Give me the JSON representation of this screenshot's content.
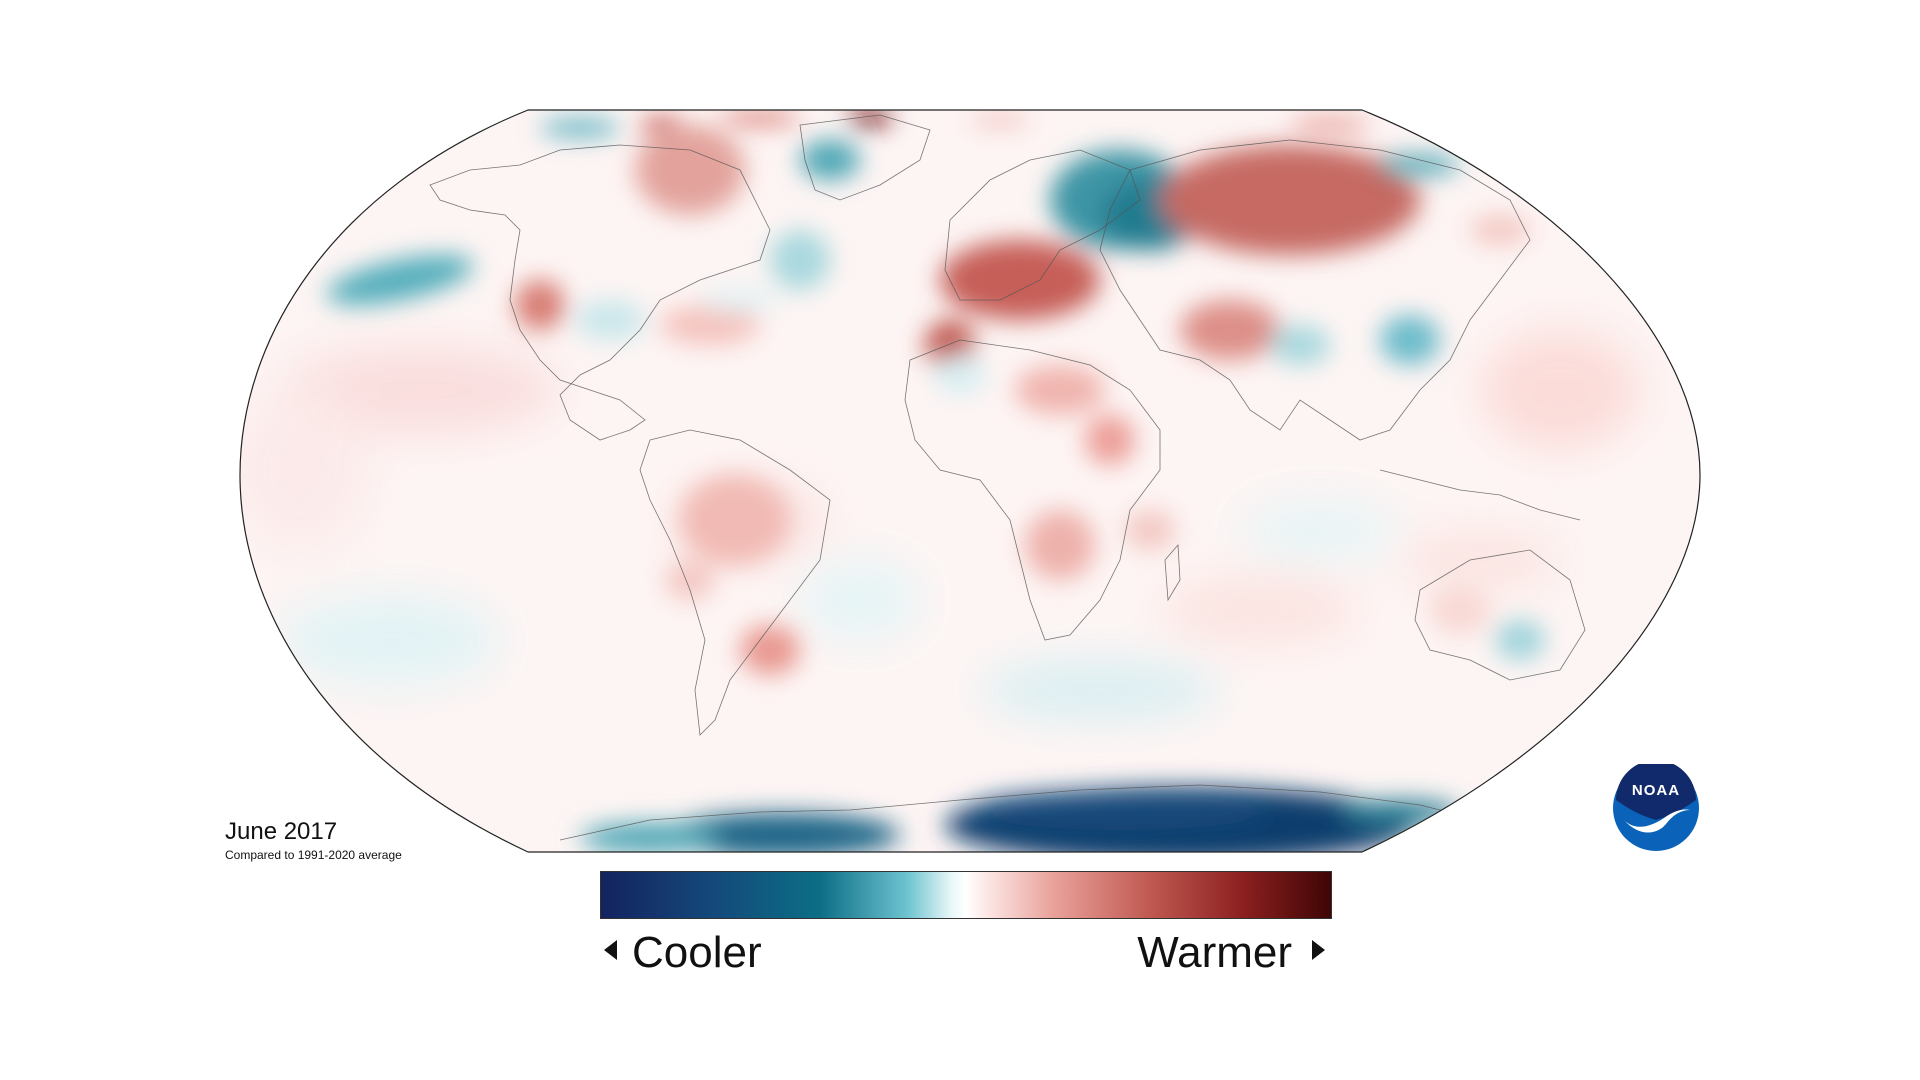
{
  "map": {
    "date_label": "June 2017",
    "baseline_label": "Compared to 1991-2020 average",
    "projection": "robinson",
    "colors": {
      "cool_extreme": "#13235f",
      "cool": "#0c6e86",
      "neutral": "#ffffff",
      "warm": "#c05a52",
      "warm_extreme": "#3f0505"
    }
  },
  "legend": {
    "cooler_label": "Cooler",
    "warmer_label": "Warmer"
  },
  "logo": {
    "text": "NOAA",
    "icon": "noaa-logo-icon",
    "colors": {
      "outer": "#0a63b8",
      "inner": "#102a6b",
      "bird": "#ffffff"
    }
  }
}
